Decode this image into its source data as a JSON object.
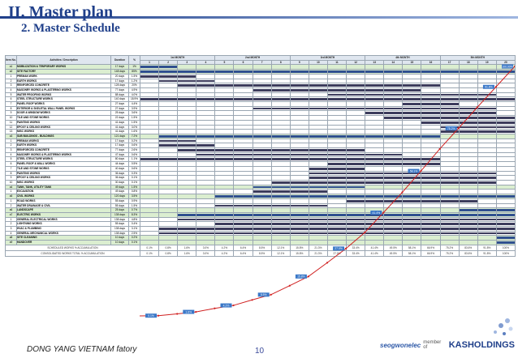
{
  "page": {
    "title": "II. Master plan",
    "subtitle": "2. Master Schedule",
    "footer_left": "DONG YANG  VIETNAM fatory",
    "page_number": "10",
    "brand_left": "seogwonelec",
    "member_text": "member of",
    "brand_right": "KASHOLDINGS",
    "accent": "#1f3f8a"
  },
  "table": {
    "col_no": "Item No.",
    "col_activity": "Activities / Description",
    "col_duration": "Duration",
    "col_pct": "%",
    "months": [
      "1st MONTH",
      "2nd MONTH",
      "3rd MONTH",
      "4th MONTH",
      "5th MONTH"
    ],
    "weeks": [
      "1",
      "2",
      "3",
      "4",
      "5",
      "6",
      "7",
      "8",
      "9",
      "10",
      "11",
      "12",
      "13",
      "14",
      "15",
      "16",
      "17",
      "18",
      "19",
      "20"
    ],
    "rows": [
      {
        "no": "a1",
        "act": "MOBILIZATION & TEMPORARY WORKS",
        "dur": "17 days",
        "pct": "1%",
        "group": true,
        "s": 0,
        "e": 2
      },
      {
        "no": "a2",
        "act": "SITE FACTORY",
        "dur": "148 days",
        "pct": "85%",
        "group": true,
        "s": 0,
        "e": 20
      },
      {
        "no": "1",
        "act": "PREMAN WORK",
        "dur": "20 days",
        "pct": "1.5%",
        "group": false,
        "s": 0,
        "e": 3
      },
      {
        "no": "2",
        "act": "EARTH WORKS",
        "dur": "17 days",
        "pct": "1.2%",
        "group": false,
        "s": 1,
        "e": 4
      },
      {
        "no": "3",
        "act": "REINFORCED CONCRETE",
        "dur": "128 days",
        "pct": "20%",
        "group": false,
        "s": 2,
        "e": 16
      },
      {
        "no": "4",
        "act": "MASONRY WORKS & PLASTERING WORKS",
        "dur": "77 days",
        "pct": "4.9%",
        "group": false,
        "s": 6,
        "e": 15
      },
      {
        "no": "5",
        "act": "WATER PROOFING WORKS",
        "dur": "88 days",
        "pct": "4.0%",
        "group": false,
        "s": 10,
        "e": 19
      },
      {
        "no": "6",
        "act": "STEEL STRUCTURE WORKS",
        "dur": "140 days",
        "pct": "18.9%",
        "group": false,
        "s": 0,
        "e": 20
      },
      {
        "no": "7",
        "act": "PANEL ROOF WORKS",
        "dur": "27 days",
        "pct": "4.4%",
        "group": false,
        "s": 14,
        "e": 17
      },
      {
        "no": "8",
        "act": "EXTERIOR & SKELETAL WALL PANEL WORKS",
        "dur": "27 days",
        "pct": "3.9%",
        "group": false,
        "s": 6,
        "e": 19
      },
      {
        "no": "9",
        "act": "DOOR & WINDOW WORKS",
        "dur": "25 days",
        "pct": "3.6%",
        "group": false,
        "s": 12,
        "e": 19
      },
      {
        "no": "10",
        "act": "TILE AND STONE WORKS",
        "dur": "22 days",
        "pct": "1.5%",
        "group": false,
        "s": 13,
        "e": 20
      },
      {
        "no": "11",
        "act": "PAINTING WORKS",
        "dur": "41 days",
        "pct": "1.5%",
        "group": false,
        "s": 15,
        "e": 20
      },
      {
        "no": "12",
        "act": "EPOXY & CEILING WORKS",
        "dur": "41 days",
        "pct": "3.0%",
        "group": false,
        "s": 16,
        "e": 20
      },
      {
        "no": "13",
        "act": "MISC WORKS",
        "dur": "41 days",
        "pct": "1.6%",
        "group": false,
        "s": 16,
        "e": 20
      },
      {
        "no": "a3",
        "act": "SUB BUILDINGS - BUILDINGS",
        "dur": "121 days",
        "pct": "7.2%",
        "group": true,
        "s": 1,
        "e": 16
      },
      {
        "no": "1",
        "act": "PREMAN WORKS",
        "dur": "17 days",
        "pct": "0.2%",
        "group": false,
        "s": 1,
        "e": 3
      },
      {
        "no": "2",
        "act": "EARTH WORKS",
        "dur": "17 days",
        "pct": "0.6%",
        "group": false,
        "s": 1,
        "e": 4
      },
      {
        "no": "3",
        "act": "REINFORCED CONCRETE",
        "dur": "77 days",
        "pct": "2.6%",
        "group": false,
        "s": 2,
        "e": 12
      },
      {
        "no": "4",
        "act": "MASONRY WORKS & PLASTERING WORKS",
        "dur": "47 days",
        "pct": "0.6%",
        "group": false,
        "s": 3,
        "e": 14
      },
      {
        "no": "5",
        "act": "STEEL STRUCTURE WORKS",
        "dur": "80 days",
        "pct": "1.1%",
        "group": false,
        "s": 0,
        "e": 16
      },
      {
        "no": "6",
        "act": "PANEL ROOF & WALL WORKS",
        "dur": "44 days",
        "pct": "0.5%",
        "group": false,
        "s": 10,
        "e": 16
      },
      {
        "no": "7",
        "act": "TILE AND STONE WORKS",
        "dur": "40 days",
        "pct": "0.6%",
        "group": false,
        "s": 9,
        "e": 12
      },
      {
        "no": "8",
        "act": "PAINTING WORKS",
        "dur": "36 days",
        "pct": "0.3%",
        "group": false,
        "s": 9,
        "e": 19
      },
      {
        "no": "9",
        "act": "EPOXY & CEILING WORKS",
        "dur": "36 days",
        "pct": "0.1%",
        "group": false,
        "s": 9,
        "e": 19
      },
      {
        "no": "10",
        "act": "MISC WORKS",
        "dur": "30 days",
        "pct": "0.1%",
        "group": false,
        "s": 7,
        "e": 19
      },
      {
        "no": "a4",
        "act": "TANK, TANK, UTILITY TANK",
        "dur": "49 days",
        "pct": "1.5%",
        "group": true,
        "s": 6,
        "e": 12
      },
      {
        "no": "1",
        "act": "EXCAVATION",
        "dur": "49 days",
        "pct": "0.8%",
        "group": false,
        "s": 6,
        "e": 10
      },
      {
        "no": "a5",
        "act": "CIVIL WORKS",
        "dur": "120 days",
        "pct": "3.5%",
        "group": true,
        "s": 4,
        "e": 20
      },
      {
        "no": "1",
        "act": "ROAD WORKS",
        "dur": "55 days",
        "pct": "0.9%",
        "group": false,
        "s": 11,
        "e": 18
      },
      {
        "no": "2",
        "act": "WATER DRAINAGE & CIVIL",
        "dur": "55 days",
        "pct": "1.5%",
        "group": false,
        "s": 4,
        "e": 10
      },
      {
        "no": "a6",
        "act": "LANDSCAPE",
        "dur": "25 days",
        "pct": "0.7%",
        "group": true,
        "s": 17,
        "e": 20
      },
      {
        "no": "a7",
        "act": "ELECTRIC WORKS",
        "dur": "138 days",
        "pct": "8.3%",
        "group": true,
        "s": 2,
        "e": 20
      },
      {
        "no": "1",
        "act": "GENERAL ELECTRICAL WORKS",
        "dur": "138 days",
        "pct": "4.8%",
        "group": false,
        "s": 2,
        "e": 20
      },
      {
        "no": "2",
        "act": "LIGHTNING WORKS",
        "dur": "55 days",
        "pct": "0.4%",
        "group": false,
        "s": 4,
        "e": 20
      },
      {
        "no": "3",
        "act": "HVAC & PLUMBING",
        "dur": "138 days",
        "pct": "3.1%",
        "group": false,
        "s": 1,
        "e": 20
      },
      {
        "no": "4",
        "act": "GENERAL MECHANICAL WORKS",
        "dur": "138 days",
        "pct": "2.5%",
        "group": false,
        "s": 1,
        "e": 20
      },
      {
        "no": "a8",
        "act": "SITE CLEANING",
        "dur": "10 days",
        "pct": "0.2%",
        "group": true,
        "s": 19,
        "e": 20
      },
      {
        "no": "a9",
        "act": "HANDOVER",
        "dur": "10 days",
        "pct": "0.1%",
        "group": true,
        "s": 19,
        "e": 20
      }
    ],
    "foot1_label": "SCHEDULED WORKS % ACCUMULATION",
    "foot2_label": "CONSOLIDATED WORKS TOTAL % ACCUMULATION",
    "foot1": [
      "0.1%",
      "0.8%",
      "1.6%",
      "3.0%",
      "4.2%",
      "6.4%",
      "8.5%",
      "12.1%",
      "15.8%",
      "21.3%",
      "27.0%",
      "33.4%",
      "41.4%",
      "49.5%",
      "58.1%",
      "66.9%",
      "75.2%",
      "83.6%",
      "91.8%",
      "100%"
    ],
    "foot2": [
      "0.1%",
      "0.8%",
      "1.6%",
      "3.0%",
      "4.2%",
      "6.4%",
      "8.5%",
      "12.1%",
      "15.8%",
      "21.3%",
      "27.0%",
      "33.4%",
      "41.4%",
      "49.5%",
      "58.1%",
      "66.9%",
      "75.2%",
      "83.6%",
      "91.8%",
      "100%"
    ]
  },
  "curve_labels": [
    "100.00%",
    "91.8%",
    "75.2%",
    "58.1%",
    "41.4%",
    "27.0%",
    "15.8%",
    "8.5%",
    "4.2%",
    "1.6%",
    "0.1%"
  ]
}
